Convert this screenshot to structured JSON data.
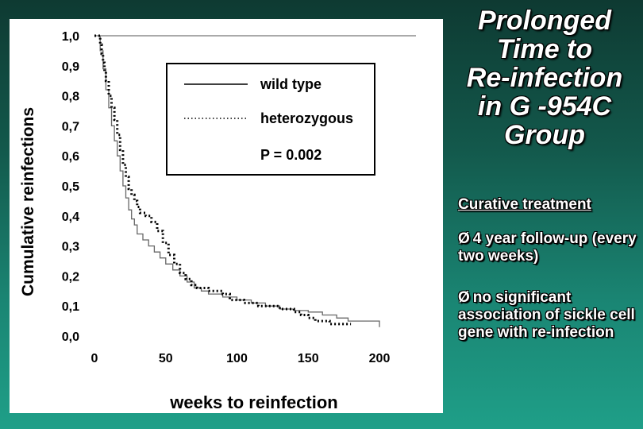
{
  "slide": {
    "title_lines": [
      "Prolonged",
      "Time to",
      "Re-infection",
      "in G -954C",
      "Group"
    ],
    "subtitle": "Curative treatment",
    "bullets": [
      {
        "mark": "Ø",
        "text": "4 year follow-up (every two weeks)"
      },
      {
        "mark": "Ø",
        "text": "no significant association of sickle cell gene with re-infection"
      }
    ]
  },
  "chart_data": {
    "type": "line",
    "title": "",
    "xlabel": "weeks to reinfection",
    "ylabel": "Cumulative reinfections",
    "xlim": [
      0,
      200
    ],
    "ylim": [
      0,
      1
    ],
    "x_ticks": [
      "0",
      "50",
      "100",
      "150",
      "200"
    ],
    "y_ticks": [
      "0,0",
      "0,1",
      "0,2",
      "0,3",
      "0,4",
      "0,5",
      "0,6",
      "0,7",
      "0,8",
      "0,9",
      "1,0"
    ],
    "legend_position": "top-right",
    "annotation": "P = 0.002",
    "series": [
      {
        "name": "wild type",
        "style": "solid",
        "x": [
          0,
          4,
          6,
          8,
          10,
          12,
          14,
          16,
          18,
          20,
          22,
          24,
          26,
          28,
          30,
          34,
          38,
          42,
          46,
          50,
          55,
          60,
          65,
          70,
          75,
          80,
          90,
          100,
          110,
          120,
          130,
          140,
          150,
          160,
          170,
          178,
          185,
          190,
          200
        ],
        "y": [
          1.0,
          0.95,
          0.89,
          0.82,
          0.76,
          0.7,
          0.65,
          0.6,
          0.55,
          0.5,
          0.46,
          0.42,
          0.39,
          0.37,
          0.34,
          0.32,
          0.3,
          0.28,
          0.26,
          0.24,
          0.22,
          0.2,
          0.18,
          0.16,
          0.15,
          0.14,
          0.13,
          0.12,
          0.11,
          0.1,
          0.09,
          0.085,
          0.08,
          0.07,
          0.06,
          0.05,
          0.05,
          0.05,
          0.03
        ]
      },
      {
        "name": "heterozygous",
        "style": "dotted",
        "x": [
          0,
          2,
          4,
          5,
          6,
          7,
          8,
          10,
          12,
          14,
          16,
          18,
          20,
          22,
          24,
          26,
          28,
          30,
          32,
          36,
          40,
          44,
          48,
          52,
          56,
          60,
          64,
          68,
          72,
          76,
          80,
          85,
          90,
          95,
          100,
          105,
          110,
          115,
          120,
          125,
          130,
          135,
          140,
          145,
          150,
          155,
          160,
          165,
          170,
          175,
          180
        ],
        "y": [
          1.0,
          1.0,
          0.97,
          0.94,
          0.91,
          0.88,
          0.85,
          0.8,
          0.76,
          0.72,
          0.67,
          0.62,
          0.57,
          0.53,
          0.49,
          0.47,
          0.45,
          0.43,
          0.41,
          0.4,
          0.38,
          0.35,
          0.31,
          0.27,
          0.24,
          0.21,
          0.19,
          0.17,
          0.16,
          0.16,
          0.15,
          0.15,
          0.14,
          0.12,
          0.12,
          0.11,
          0.11,
          0.1,
          0.1,
          0.1,
          0.09,
          0.09,
          0.08,
          0.07,
          0.06,
          0.05,
          0.05,
          0.04,
          0.04,
          0.04,
          0.04
        ]
      }
    ]
  }
}
